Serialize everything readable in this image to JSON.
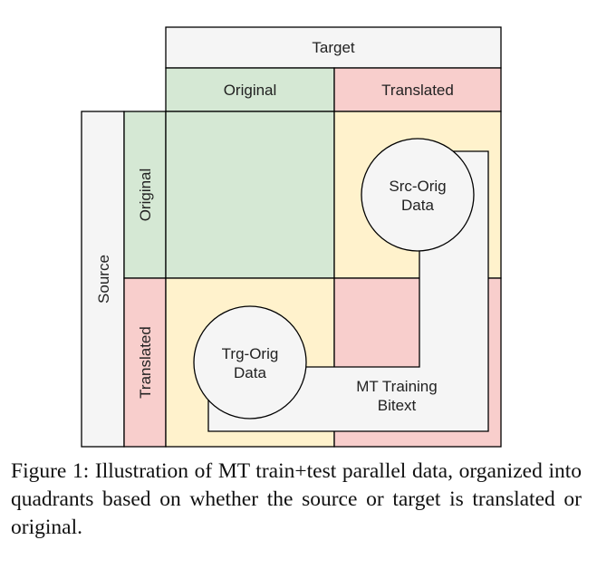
{
  "diagram": {
    "header": {
      "target": "Target",
      "original": "Original",
      "translated": "Translated"
    },
    "side": {
      "source": "Source",
      "original": "Original",
      "translated": "Translated"
    },
    "nodes": {
      "src_orig": [
        "Src-Orig",
        "Data"
      ],
      "trg_orig": [
        "Trg-Orig",
        "Data"
      ],
      "mt_training": [
        "MT Training",
        "Bitext"
      ]
    },
    "colors": {
      "green": "#d5e8d4",
      "red": "#f8cecc",
      "yellow": "#fff2cc",
      "grey": "#f5f5f5",
      "border": "#000000",
      "circle": "#f5f5f5"
    }
  },
  "caption": "Figure 1: Illustration of MT train+test parallel data, or­ganized into quadrants based on whether the source or target is translated or original."
}
